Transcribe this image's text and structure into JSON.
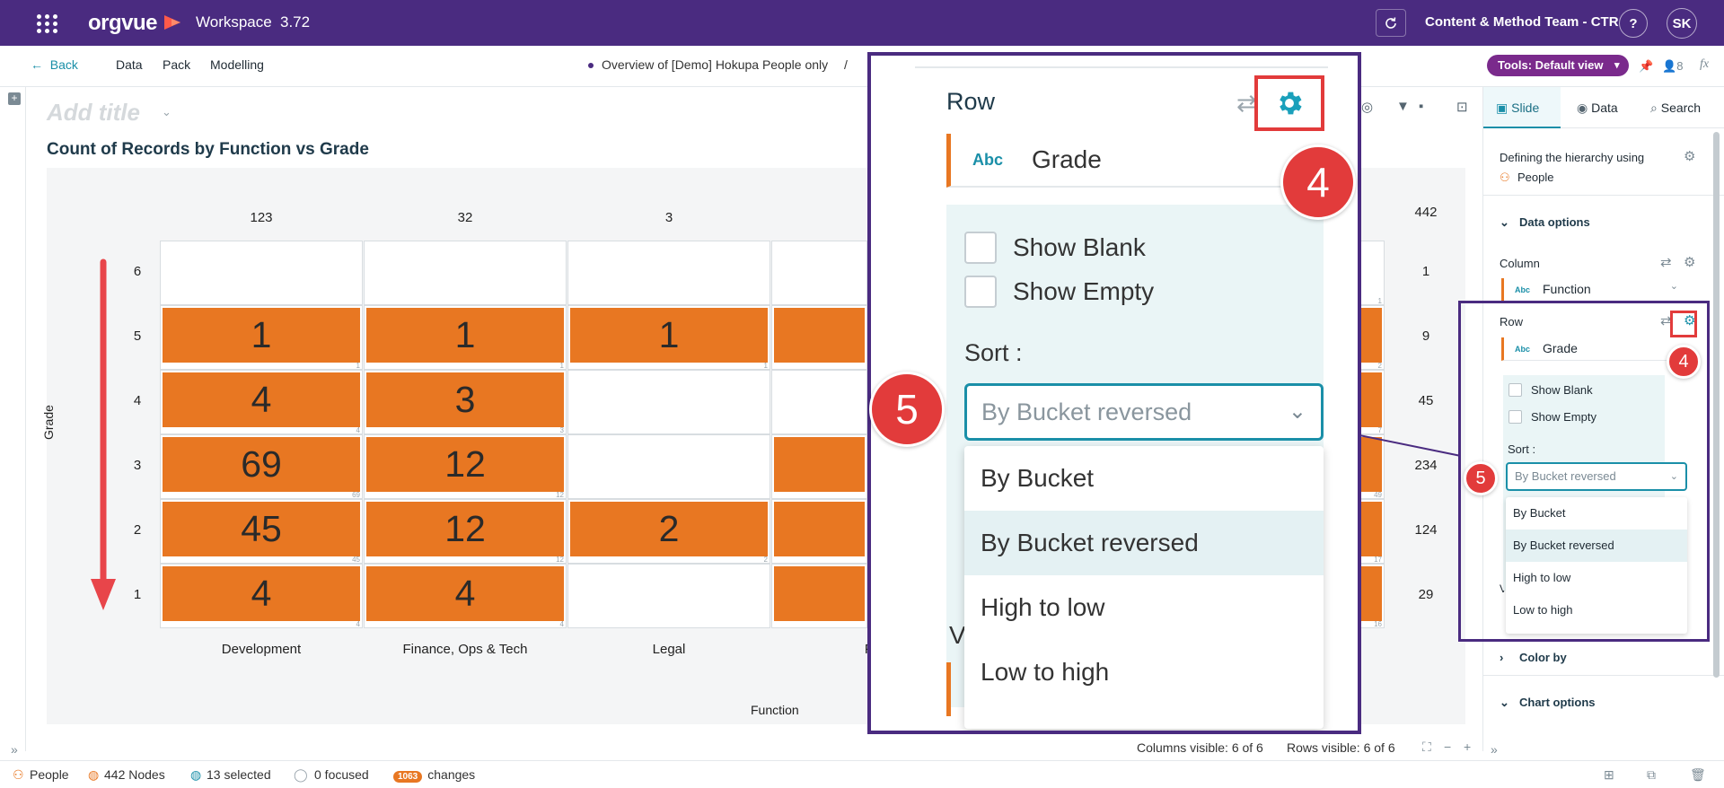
{
  "header": {
    "app_name": "orgvue",
    "workspace_label": "Workspace",
    "version": "3.72",
    "team": "Content & Method Team - CTR",
    "help_label": "?",
    "user_initials": "SK"
  },
  "nav": {
    "back_label": "Back",
    "items": [
      "Data",
      "Pack",
      "Modelling"
    ],
    "breadcrumb": "Overview of [Demo] Hokupa People only",
    "breadcrumb_sep": "/",
    "tools_label": "Tools: Default view",
    "users_count": "8",
    "fx_label": "fx"
  },
  "canvas": {
    "add_title_placeholder": "Add title",
    "chart_title": "Count of Records by Function vs Grade"
  },
  "chart_data": {
    "type": "heatmap",
    "title": "Count of Records by Function vs Grade",
    "xlabel": "Function",
    "ylabel": "Grade",
    "columns": [
      "Development",
      "Finance, Ops & Tech",
      "Legal",
      "Pe"
    ],
    "column_totals": [
      "123",
      "32",
      "3"
    ],
    "rows": [
      "6",
      "5",
      "4",
      "3",
      "2",
      "1"
    ],
    "row_totals": [
      "1",
      "9",
      "45",
      "234",
      "124",
      "29"
    ],
    "grand_total": "442",
    "cells": [
      [
        null,
        null,
        null
      ],
      [
        1,
        1,
        1
      ],
      [
        4,
        3,
        null
      ],
      [
        69,
        12,
        null
      ],
      [
        45,
        12,
        2
      ],
      [
        4,
        4,
        null
      ]
    ],
    "right_edge_small_counts": [
      "1",
      "2",
      "7",
      "49",
      "17",
      "16"
    ]
  },
  "right_panel": {
    "tabs": [
      "Slide",
      "Data",
      "Search"
    ],
    "hierarchy_text": "Defining the hierarchy using",
    "hierarchy_value": "People",
    "data_options_label": "Data options",
    "column_label": "Column",
    "column_value": "Function",
    "row_label": "Row",
    "row_value": "Grade",
    "abc_label": "Abc",
    "show_blank": "Show Blank",
    "show_empty": "Show Empty",
    "sort_label": "Sort :",
    "sort_value": "By Bucket reversed",
    "sort_options": [
      "By Bucket",
      "By Bucket reversed",
      "High to low",
      "Low to high"
    ],
    "v_fragment": "V",
    "color_by_label": "Color by",
    "chart_options_label": "Chart options"
  },
  "badges": {
    "step4": "4",
    "step5": "5"
  },
  "chart_status": {
    "columns_visible": "Columns visible: 6 of 6",
    "rows_visible": "Rows visible: 6 of 6"
  },
  "statusbar": {
    "people": "People",
    "nodes": "442 Nodes",
    "selected": "13 selected",
    "focused": "0 focused",
    "changes_count": "1063",
    "changes_label": "changes"
  },
  "colors": {
    "header_bg": "#4a2b80",
    "bar": "#e87722",
    "accent": "#1a8fa8",
    "badge": "#e23b3b"
  }
}
